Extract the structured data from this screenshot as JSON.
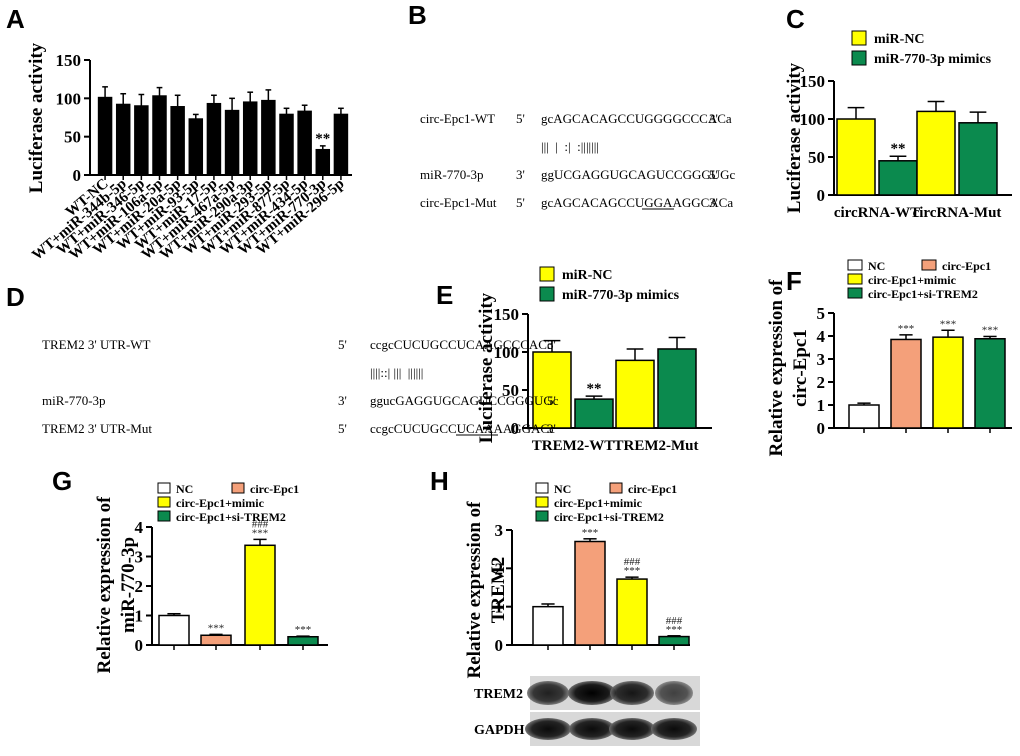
{
  "panels": {
    "A": "A",
    "B": "B",
    "C": "C",
    "D": "D",
    "E": "E",
    "F": "F",
    "G": "G",
    "H": "H"
  },
  "chart_data": [
    {
      "id": "A",
      "type": "bar",
      "ylabel": "Luciferase activity",
      "ylim": [
        0,
        150
      ],
      "yticks": [
        0,
        50,
        100,
        150
      ],
      "categories": [
        "WT-NC",
        "WT+miR-344b-5p",
        "WT+miR-346-5p",
        "WT+miR-106a-5p",
        "WT+miR-20a-5p",
        "WT+miR-93-5p",
        "WT+miR-17-5p",
        "WT+miR-467a-5p",
        "WT+miR-290a-3p",
        "WT+miR-293-5p",
        "WT+miR-877-5p",
        "WT+miR-434-5p",
        "WT+miR-770-3p",
        "WT+miR-296-5p"
      ],
      "values": [
        101,
        92,
        90,
        103,
        89,
        73,
        93,
        84,
        95,
        97,
        79,
        83,
        33,
        79
      ],
      "errors": [
        14,
        14,
        15,
        11,
        15,
        6,
        11,
        16,
        13,
        14,
        8,
        8,
        5,
        8
      ],
      "annotations": [
        {
          "index": 12,
          "text": "**"
        }
      ]
    },
    {
      "id": "C",
      "type": "bar",
      "ylabel": "Luciferase activity",
      "ylim": [
        0,
        150
      ],
      "yticks": [
        0,
        50,
        100,
        150
      ],
      "groups": [
        "circRNA-WT",
        "circRNA-Mut"
      ],
      "series": [
        {
          "name": "miR-NC",
          "color": "#ffff00",
          "values": [
            100,
            110
          ],
          "errors": [
            15,
            13
          ]
        },
        {
          "name": "miR-770-3p mimics",
          "color": "#0b8a4e",
          "values": [
            45,
            95
          ],
          "errors": [
            6,
            14
          ]
        }
      ],
      "annotations": [
        {
          "group": 0,
          "series": 1,
          "text": "**"
        }
      ]
    },
    {
      "id": "E",
      "type": "bar",
      "ylabel": "Luciferase activity",
      "ylim": [
        0,
        150
      ],
      "yticks": [
        0,
        50,
        100,
        150
      ],
      "groups": [
        "TREM2-WT",
        "TREM2-Mut"
      ],
      "series": [
        {
          "name": "miR-NC",
          "color": "#ffff00",
          "values": [
            100,
            89
          ],
          "errors": [
            15,
            15
          ]
        },
        {
          "name": "miR-770-3p mimics",
          "color": "#0b8a4e",
          "values": [
            38,
            104
          ],
          "errors": [
            4,
            15
          ]
        }
      ],
      "annotations": [
        {
          "group": 0,
          "series": 1,
          "text": "**"
        }
      ]
    },
    {
      "id": "F",
      "type": "bar",
      "ylabel": [
        "Relative expression of",
        "circ-Epc1"
      ],
      "ylim": [
        0,
        5
      ],
      "yticks": [
        0,
        1,
        2,
        3,
        4,
        5
      ],
      "categories": [
        "NC",
        "circ-Epc1",
        "circ-Epc1+mimic",
        "circ-Epc1+si-TREM2"
      ],
      "colors": [
        "#ffffff",
        "#f4a07a",
        "#ffff00",
        "#0b8a4e"
      ],
      "values": [
        1.0,
        3.85,
        3.95,
        3.88
      ],
      "errors": [
        0.08,
        0.2,
        0.3,
        0.1
      ],
      "annotations": [
        {
          "index": 1,
          "text": "***"
        },
        {
          "index": 2,
          "text": "***"
        },
        {
          "index": 3,
          "text": "***"
        }
      ]
    },
    {
      "id": "G",
      "type": "bar",
      "ylabel": [
        "Relative expression of",
        "miR-770-3p"
      ],
      "ylim": [
        0,
        4
      ],
      "yticks": [
        0,
        1,
        2,
        3,
        4
      ],
      "categories": [
        "NC",
        "circ-Epc1",
        "circ-Epc1+mimic",
        "circ-Epc1+si-TREM2"
      ],
      "colors": [
        "#ffffff",
        "#f4a07a",
        "#ffff00",
        "#0b8a4e"
      ],
      "values": [
        1.0,
        0.33,
        3.38,
        0.28
      ],
      "errors": [
        0.06,
        0.03,
        0.2,
        0.02
      ],
      "annotations": [
        {
          "index": 1,
          "text": "***"
        },
        {
          "index": 2,
          "text": "###\n***"
        },
        {
          "index": 3,
          "text": "***"
        }
      ]
    },
    {
      "id": "H",
      "type": "bar",
      "ylabel": [
        "Relative expression of",
        "TREM2"
      ],
      "ylim": [
        0,
        3
      ],
      "yticks": [
        0,
        1,
        2,
        3
      ],
      "categories": [
        "NC",
        "circ-Epc1",
        "circ-Epc1+mimic",
        "circ-Epc1+si-TREM2"
      ],
      "colors": [
        "#ffffff",
        "#f4a07a",
        "#ffff00",
        "#0b8a4e"
      ],
      "values": [
        1.0,
        2.7,
        1.72,
        0.22
      ],
      "errors": [
        0.07,
        0.07,
        0.05,
        0.02
      ],
      "annotations": [
        {
          "index": 1,
          "text": "***"
        },
        {
          "index": 2,
          "text": "###\n***"
        },
        {
          "index": 3,
          "text": "###\n***"
        }
      ]
    }
  ],
  "seqB": {
    "rows": [
      {
        "label": "circ-Epc1-WT",
        "p1": "5'",
        "seq": "gcAGCACAGCCUGGGGCCCACa",
        "p2": "3'"
      },
      {
        "label": "",
        "p1": "",
        "seq": "|||  |  :|  :|||||||",
        "p2": ""
      },
      {
        "label": "miR-770-3p",
        "p1": "3'",
        "seq": "ggUCGAGGUGCAGUCCGGGUGc",
        "p2": "5'"
      },
      {
        "label": "circ-Epc1-Mut",
        "p1": "5'",
        "seq": "gcAGCACAGCCUGGAAGGCACa",
        "p2": "3'"
      }
    ]
  },
  "seqD": {
    "rows": [
      {
        "label": "TREM2 3' UTR-WT",
        "p1": "5'",
        "seq": "ccgcCUCUGCCUCAAGCCCACc",
        "p2": "3'"
      },
      {
        "label": "",
        "p1": "",
        "seq": "||||::| |||  ||||||",
        "p2": ""
      },
      {
        "label": "miR-770-3p",
        "p1": "3'",
        "seq": "ggucGAGGUGCAGUCCGGGUGc",
        "p2": "5'"
      },
      {
        "label": "TREM2 3' UTR-Mut",
        "p1": "5'",
        "seq": "ccgcCUCUGCCUCAAAAGGACc",
        "p2": "3'"
      }
    ]
  },
  "blot": {
    "labels": [
      "TREM2",
      "GAPDH"
    ]
  },
  "legend_groups": {
    "CE": [
      "miR-NC",
      "miR-770-3p mimics"
    ],
    "FGH": [
      "NC",
      "circ-Epc1",
      "circ-Epc1+mimic",
      "circ-Epc1+si-TREM2"
    ]
  }
}
